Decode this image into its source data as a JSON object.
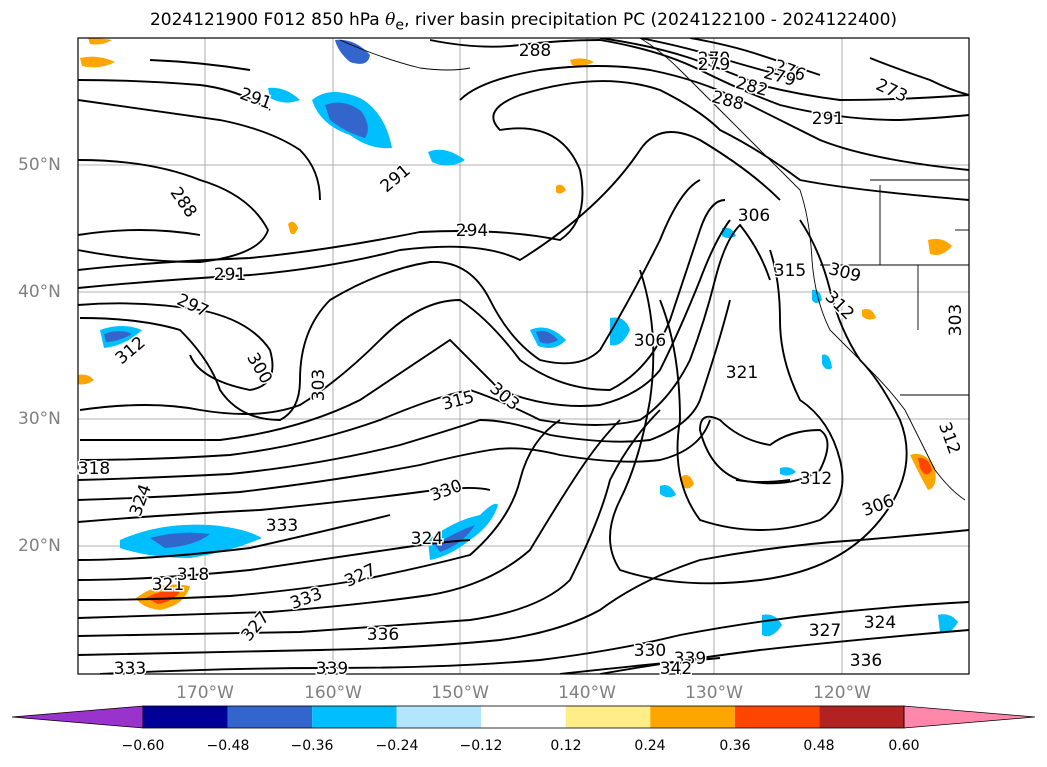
{
  "title": {
    "prefix": "2024121900 F012 850 hPa ",
    "theta": "θ",
    "sub": "e",
    "suffix": ", river basin precipitation PC (2024122100 - 2024122400)"
  },
  "axes": {
    "lat_labels": [
      "50°N",
      "40°N",
      "30°N",
      "20°N"
    ],
    "lon_labels": [
      "170°W",
      "160°W",
      "150°W",
      "140°W",
      "130°W",
      "120°W"
    ]
  },
  "contour_labels": [
    "288",
    "270",
    "279",
    "276",
    "273",
    "282",
    "279",
    "288",
    "291",
    "291",
    "291",
    "288",
    "294",
    "291",
    "297",
    "306",
    "312",
    "300",
    "303",
    "306",
    "315",
    "309",
    "312",
    "303",
    "321",
    "315",
    "303",
    "312",
    "318",
    "312",
    "324",
    "330",
    "306",
    "333",
    "324",
    "327",
    "321",
    "318",
    "333",
    "327",
    "336",
    "330",
    "339",
    "342",
    "327",
    "324",
    "333",
    "339",
    "336"
  ],
  "colorbar": {
    "ticks": [
      "−0.60",
      "−0.48",
      "−0.36",
      "−0.24",
      "−0.12",
      "0.12",
      "0.24",
      "0.36",
      "0.48",
      "0.60"
    ],
    "colors": [
      "#9933cc",
      "#000099",
      "#3366cc",
      "#00bfff",
      "#b3e5ff",
      "#ffffff",
      "#ffee88",
      "#ffa500",
      "#ff4500",
      "#b22222",
      "#ff88aa",
      "#ff88aa"
    ]
  }
}
